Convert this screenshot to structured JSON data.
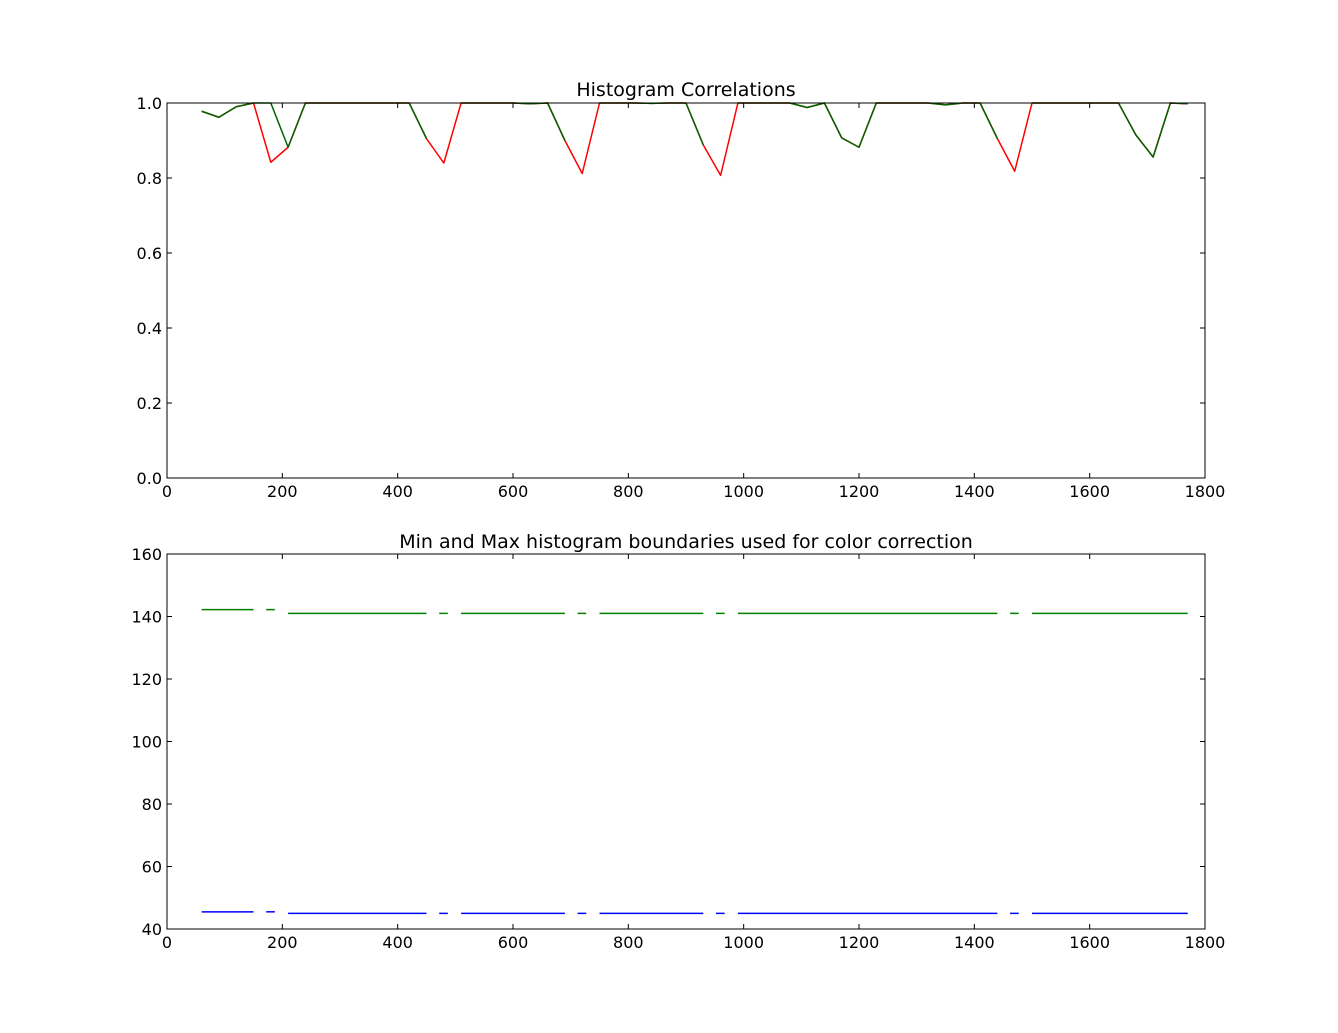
{
  "chart_data": [
    {
      "type": "line",
      "title": "Histogram Correlations",
      "xlabel": "",
      "ylabel": "",
      "xlim": [
        0,
        1800
      ],
      "ylim": [
        0.0,
        1.0
      ],
      "xticks": [
        "0",
        "200",
        "400",
        "600",
        "800",
        "1000",
        "1200",
        "1400",
        "1600",
        "1800"
      ],
      "yticks": [
        "0.0",
        "0.2",
        "0.4",
        "0.6",
        "0.8",
        "1.0"
      ],
      "grid": false,
      "series": [
        {
          "color": "#ff0000",
          "x": [
            60,
            90,
            120,
            150,
            180,
            210,
            240,
            270,
            300,
            330,
            360,
            390,
            420,
            450,
            480,
            510,
            540,
            570,
            600,
            630,
            660,
            690,
            720,
            750,
            780,
            810,
            840,
            870,
            900,
            930,
            960,
            990,
            1020,
            1050,
            1080,
            1110,
            1140,
            1170,
            1200,
            1230,
            1260,
            1290,
            1320,
            1350,
            1380,
            1410,
            1440,
            1470,
            1500,
            1530,
            1560,
            1590,
            1620,
            1650,
            1680,
            1710,
            1740,
            1770
          ],
          "y": [
            0.978,
            0.962,
            0.99,
            1.0,
            0.842,
            0.882,
            1.0,
            1.0,
            1.0,
            1.0,
            1.0,
            1.0,
            1.0,
            0.905,
            0.84,
            1.0,
            1.0,
            1.0,
            1.0,
            0.998,
            1.0,
            0.9,
            0.812,
            1.0,
            1.0,
            1.0,
            0.999,
            1.0,
            1.0,
            0.888,
            0.807,
            1.0,
            1.0,
            1.0,
            1.0,
            0.988,
            1.0,
            0.907,
            0.882,
            1.0,
            1.0,
            1.0,
            1.0,
            0.995,
            1.0,
            1.0,
            0.905,
            0.818,
            1.0,
            1.0,
            1.0,
            1.0,
            1.0,
            1.0,
            0.915,
            0.856,
            1.0,
            0.998
          ]
        },
        {
          "color": "#006400",
          "x": [
            60,
            90,
            120,
            150,
            180,
            210,
            240,
            270,
            300,
            330,
            360,
            390,
            420,
            450,
            480,
            510,
            540,
            570,
            600,
            630,
            660,
            690,
            720,
            750,
            780,
            810,
            840,
            870,
            900,
            930,
            960,
            990,
            1020,
            1050,
            1080,
            1110,
            1140,
            1170,
            1200,
            1230,
            1260,
            1290,
            1320,
            1350,
            1380,
            1410,
            1440,
            1470,
            1500,
            1530,
            1560,
            1590,
            1620,
            1650,
            1680,
            1710,
            1740,
            1770
          ],
          "y": [
            0.978,
            0.962,
            0.99,
            1.0,
            1.0,
            0.882,
            1.0,
            1.0,
            1.0,
            1.0,
            1.0,
            1.0,
            1.0,
            0.905,
            null,
            1.0,
            1.0,
            1.0,
            1.0,
            0.998,
            1.0,
            0.9,
            null,
            1.0,
            1.0,
            1.0,
            0.999,
            1.0,
            1.0,
            0.888,
            null,
            1.0,
            1.0,
            1.0,
            1.0,
            0.988,
            1.0,
            0.907,
            0.882,
            1.0,
            1.0,
            1.0,
            1.0,
            0.995,
            1.0,
            1.0,
            0.905,
            null,
            1.0,
            1.0,
            1.0,
            1.0,
            1.0,
            1.0,
            0.915,
            0.856,
            1.0,
            0.998
          ]
        }
      ]
    },
    {
      "type": "line",
      "title": "Min and Max histogram boundaries used for color correction",
      "xlabel": "",
      "ylabel": "",
      "xlim": [
        0,
        1800
      ],
      "ylim": [
        40,
        160
      ],
      "xticks": [
        "0",
        "200",
        "400",
        "600",
        "800",
        "1000",
        "1200",
        "1400",
        "1600",
        "1800"
      ],
      "yticks": [
        "40",
        "60",
        "80",
        "100",
        "120",
        "140",
        "160"
      ],
      "grid": false,
      "segments": [
        {
          "color": "#008000",
          "x": [
            60,
            150
          ],
          "y": 142.2
        },
        {
          "color": "#008000",
          "x": [
            172,
            187
          ],
          "y": 142.2
        },
        {
          "color": "#008000",
          "x": [
            210,
            450
          ],
          "y": 141.0
        },
        {
          "color": "#008000",
          "x": [
            472,
            487
          ],
          "y": 141.0
        },
        {
          "color": "#008000",
          "x": [
            510,
            690
          ],
          "y": 141.0
        },
        {
          "color": "#008000",
          "x": [
            712,
            727
          ],
          "y": 141.0
        },
        {
          "color": "#008000",
          "x": [
            750,
            930
          ],
          "y": 141.0
        },
        {
          "color": "#008000",
          "x": [
            952,
            967
          ],
          "y": 141.0
        },
        {
          "color": "#008000",
          "x": [
            990,
            1440
          ],
          "y": 141.0
        },
        {
          "color": "#008000",
          "x": [
            1462,
            1477
          ],
          "y": 141.0
        },
        {
          "color": "#008000",
          "x": [
            1500,
            1770
          ],
          "y": 141.0
        },
        {
          "color": "#0000ff",
          "x": [
            60,
            150
          ],
          "y": 45.5
        },
        {
          "color": "#0000ff",
          "x": [
            172,
            187
          ],
          "y": 45.5
        },
        {
          "color": "#0000ff",
          "x": [
            210,
            450
          ],
          "y": 45.0
        },
        {
          "color": "#0000ff",
          "x": [
            472,
            487
          ],
          "y": 45.0
        },
        {
          "color": "#0000ff",
          "x": [
            510,
            690
          ],
          "y": 45.0
        },
        {
          "color": "#0000ff",
          "x": [
            712,
            727
          ],
          "y": 45.0
        },
        {
          "color": "#0000ff",
          "x": [
            750,
            930
          ],
          "y": 45.0
        },
        {
          "color": "#0000ff",
          "x": [
            952,
            967
          ],
          "y": 45.0
        },
        {
          "color": "#0000ff",
          "x": [
            990,
            1440
          ],
          "y": 45.0
        },
        {
          "color": "#0000ff",
          "x": [
            1462,
            1477
          ],
          "y": 45.0
        },
        {
          "color": "#0000ff",
          "x": [
            1500,
            1770
          ],
          "y": 45.0
        }
      ]
    }
  ]
}
